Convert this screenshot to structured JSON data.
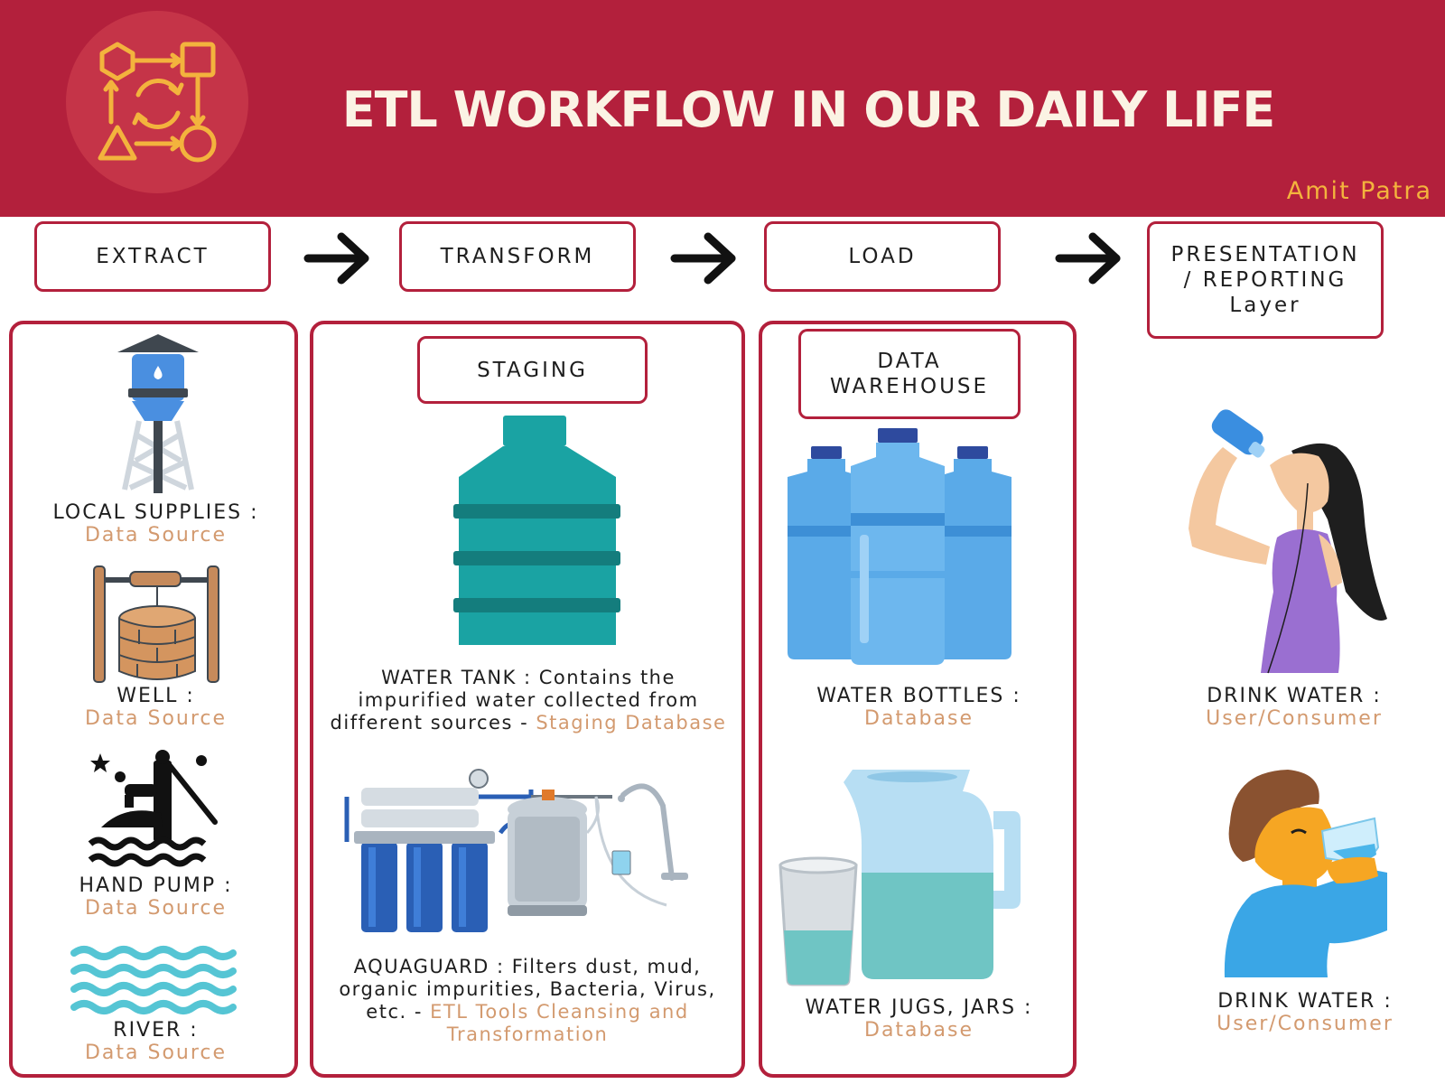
{
  "header": {
    "title": "ETL WORKFLOW IN OUR DAILY LIFE",
    "author": "Amit Patra",
    "logo_icon": "workflow-cycle-icon"
  },
  "stages": [
    {
      "label": "EXTRACT"
    },
    {
      "label": "TRANSFORM"
    },
    {
      "label": "LOAD"
    },
    {
      "label": "PRESENTATION / REPORTING Layer"
    }
  ],
  "extract": {
    "items": [
      {
        "name": "LOCAL SUPPLIES :",
        "role": "Data Source",
        "icon": "water-tower-icon"
      },
      {
        "name": "WELL :",
        "role": "Data Source",
        "icon": "well-icon"
      },
      {
        "name": "HAND PUMP :",
        "role": "Data Source",
        "icon": "hand-pump-icon"
      },
      {
        "name": "RIVER :",
        "role": "Data Source",
        "icon": "river-waves-icon"
      }
    ]
  },
  "transform": {
    "section_label": "STAGING",
    "tank": {
      "text": "WATER TANK : Contains the impurified water collected from different sources -",
      "highlight": "Staging Database",
      "icon": "water-tank-icon"
    },
    "filter": {
      "text": "AQUAGUARD : Filters dust, mud, organic impurities, Bacteria, Virus, etc. -",
      "highlight": "ETL Tools Cleansing and Transformation",
      "icon": "water-purifier-icon"
    }
  },
  "load": {
    "section_label": "DATA WAREHOUSE",
    "items": [
      {
        "name": "WATER BOTTLES :",
        "role": "Database",
        "icon": "water-bottles-icon"
      },
      {
        "name": "WATER JUGS, JARS :",
        "role": "Database",
        "icon": "water-jug-icon"
      }
    ]
  },
  "presentation": {
    "items": [
      {
        "name": "DRINK WATER :",
        "role": "User/Consumer",
        "icon": "woman-drinking-icon"
      },
      {
        "name": "DRINK WATER :",
        "role": "User/Consumer",
        "icon": "man-drinking-icon"
      }
    ]
  },
  "colors": {
    "brand": "#b3203c",
    "accent": "#f3b33d",
    "highlight_text": "#d39a6f",
    "title_text": "#fbf3e4"
  }
}
